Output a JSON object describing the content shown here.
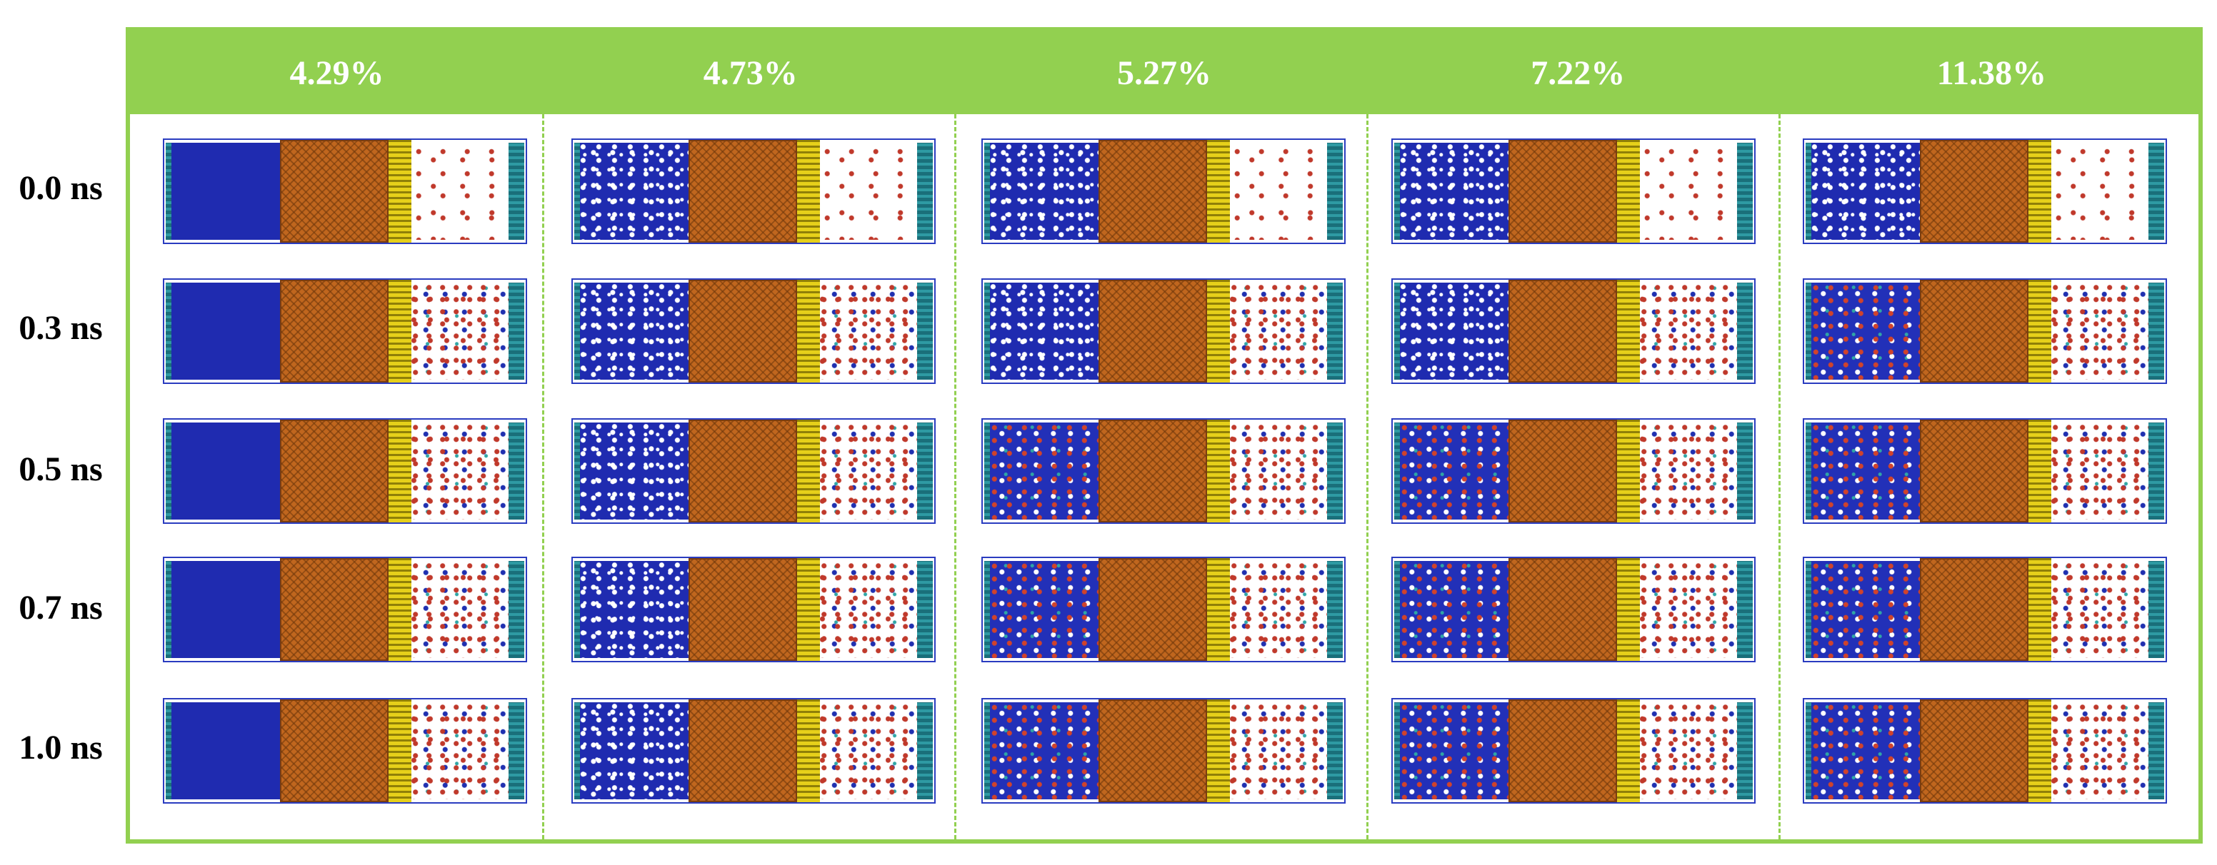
{
  "columns": [
    "4.29%",
    "4.73%",
    "5.27%",
    "7.22%",
    "11.38%"
  ],
  "rows": [
    "0.0 ns",
    "0.3 ns",
    "0.5 ns",
    "0.7 ns",
    "1.0 ns"
  ],
  "colors": {
    "frame_green": "#92d050",
    "water_blue": "#1f2bb0",
    "crystal_orange": "#c0661e",
    "gold_layer": "#e6d01a",
    "wall_teal": "#1a6f7a",
    "gas_red": "#c0392b"
  }
}
